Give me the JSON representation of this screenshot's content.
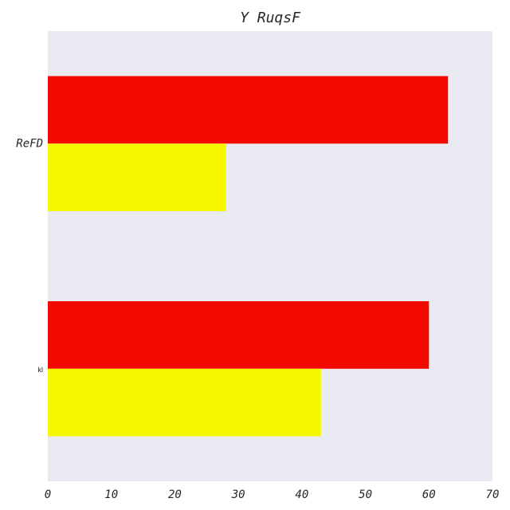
{
  "chart_data": {
    "type": "bar",
    "orientation": "horizontal",
    "title": "Y RuqsF",
    "xlabel": "",
    "ylabel": "",
    "categories": [
      "ReFD",
      "kl"
    ],
    "series": [
      {
        "values": [
          63,
          60
        ],
        "color": "#f20a00"
      },
      {
        "values": [
          28,
          43
        ],
        "color": "#f7f700"
      }
    ],
    "xlim": [
      0,
      70
    ],
    "xticks": [
      0,
      10,
      20,
      30,
      40,
      50,
      60,
      70
    ],
    "grid": false,
    "legend": "none",
    "background_color": "#eaeaf2"
  }
}
